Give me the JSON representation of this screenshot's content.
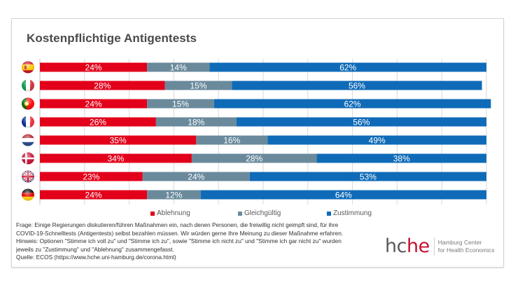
{
  "chart_data": {
    "type": "bar",
    "orientation": "horizontal",
    "stacked": true,
    "normalized": true,
    "title": "Kostenpflichtige Antigentests",
    "xlabel": "",
    "ylabel": "",
    "xlim": [
      0,
      100
    ],
    "grid": true,
    "gridline_step": 10,
    "legend_position": "bottom",
    "categories": [
      "Spain",
      "Italy",
      "Portugal",
      "France",
      "Netherlands",
      "Denmark",
      "United Kingdom",
      "Germany"
    ],
    "category_icons": [
      "flag-spain-icon",
      "flag-italy-icon",
      "flag-portugal-icon",
      "flag-france-icon",
      "flag-netherlands-icon",
      "flag-denmark-icon",
      "flag-uk-icon",
      "flag-germany-icon"
    ],
    "series": [
      {
        "name": "Ablehnung",
        "color": "#e2001a",
        "values": [
          24,
          28,
          24,
          26,
          35,
          34,
          23,
          24
        ],
        "labels": [
          "24%",
          "28%",
          "24%",
          "26%",
          "35%",
          "34%",
          "23%",
          "24%"
        ]
      },
      {
        "name": "Gleichgültig",
        "color": "#6a8a9c",
        "values": [
          14,
          15,
          15,
          18,
          16,
          28,
          24,
          12
        ],
        "labels": [
          "14%",
          "15%",
          "15%",
          "18%",
          "16%",
          "28%",
          "24%",
          "12%"
        ]
      },
      {
        "name": "Zustimmung",
        "color": "#0f6bb8",
        "values": [
          62,
          56,
          62,
          56,
          49,
          38,
          53,
          64
        ],
        "labels": [
          "62%",
          "56%",
          "62%",
          "56%",
          "49%",
          "38%",
          "53%",
          "64%"
        ]
      }
    ]
  },
  "notes": [
    "Frage: Einige Regierungen diskutieren/führen Maßnahmen ein, nach denen Personen, die freiwillig nicht geimpft sind, für ihre",
    "COVID-19-Schnelltests (Antigentests) selbst bezahlen müssen. Wir würden gerne Ihre Meinung zu dieser Maßnahme erfahren.",
    "Hinweis: Optionen \"Stimme ich voll zu\" und \"Stimme ich zu\", sowie \"Stimme ich nicht zu\" und \"Stimme ich gar nicht zu\" wurden",
    "jeweils zu \"Zustimmung\" und \"Ablehnung\" zusammengefasst.",
    "Quelle: ECOS (https://www.hche.uni-hamburg.de/corona.html)"
  ],
  "logo": {
    "word_part1": "hc",
    "word_part2": "he",
    "line1": "Hamburg Center",
    "line2": "for Health Economics"
  }
}
